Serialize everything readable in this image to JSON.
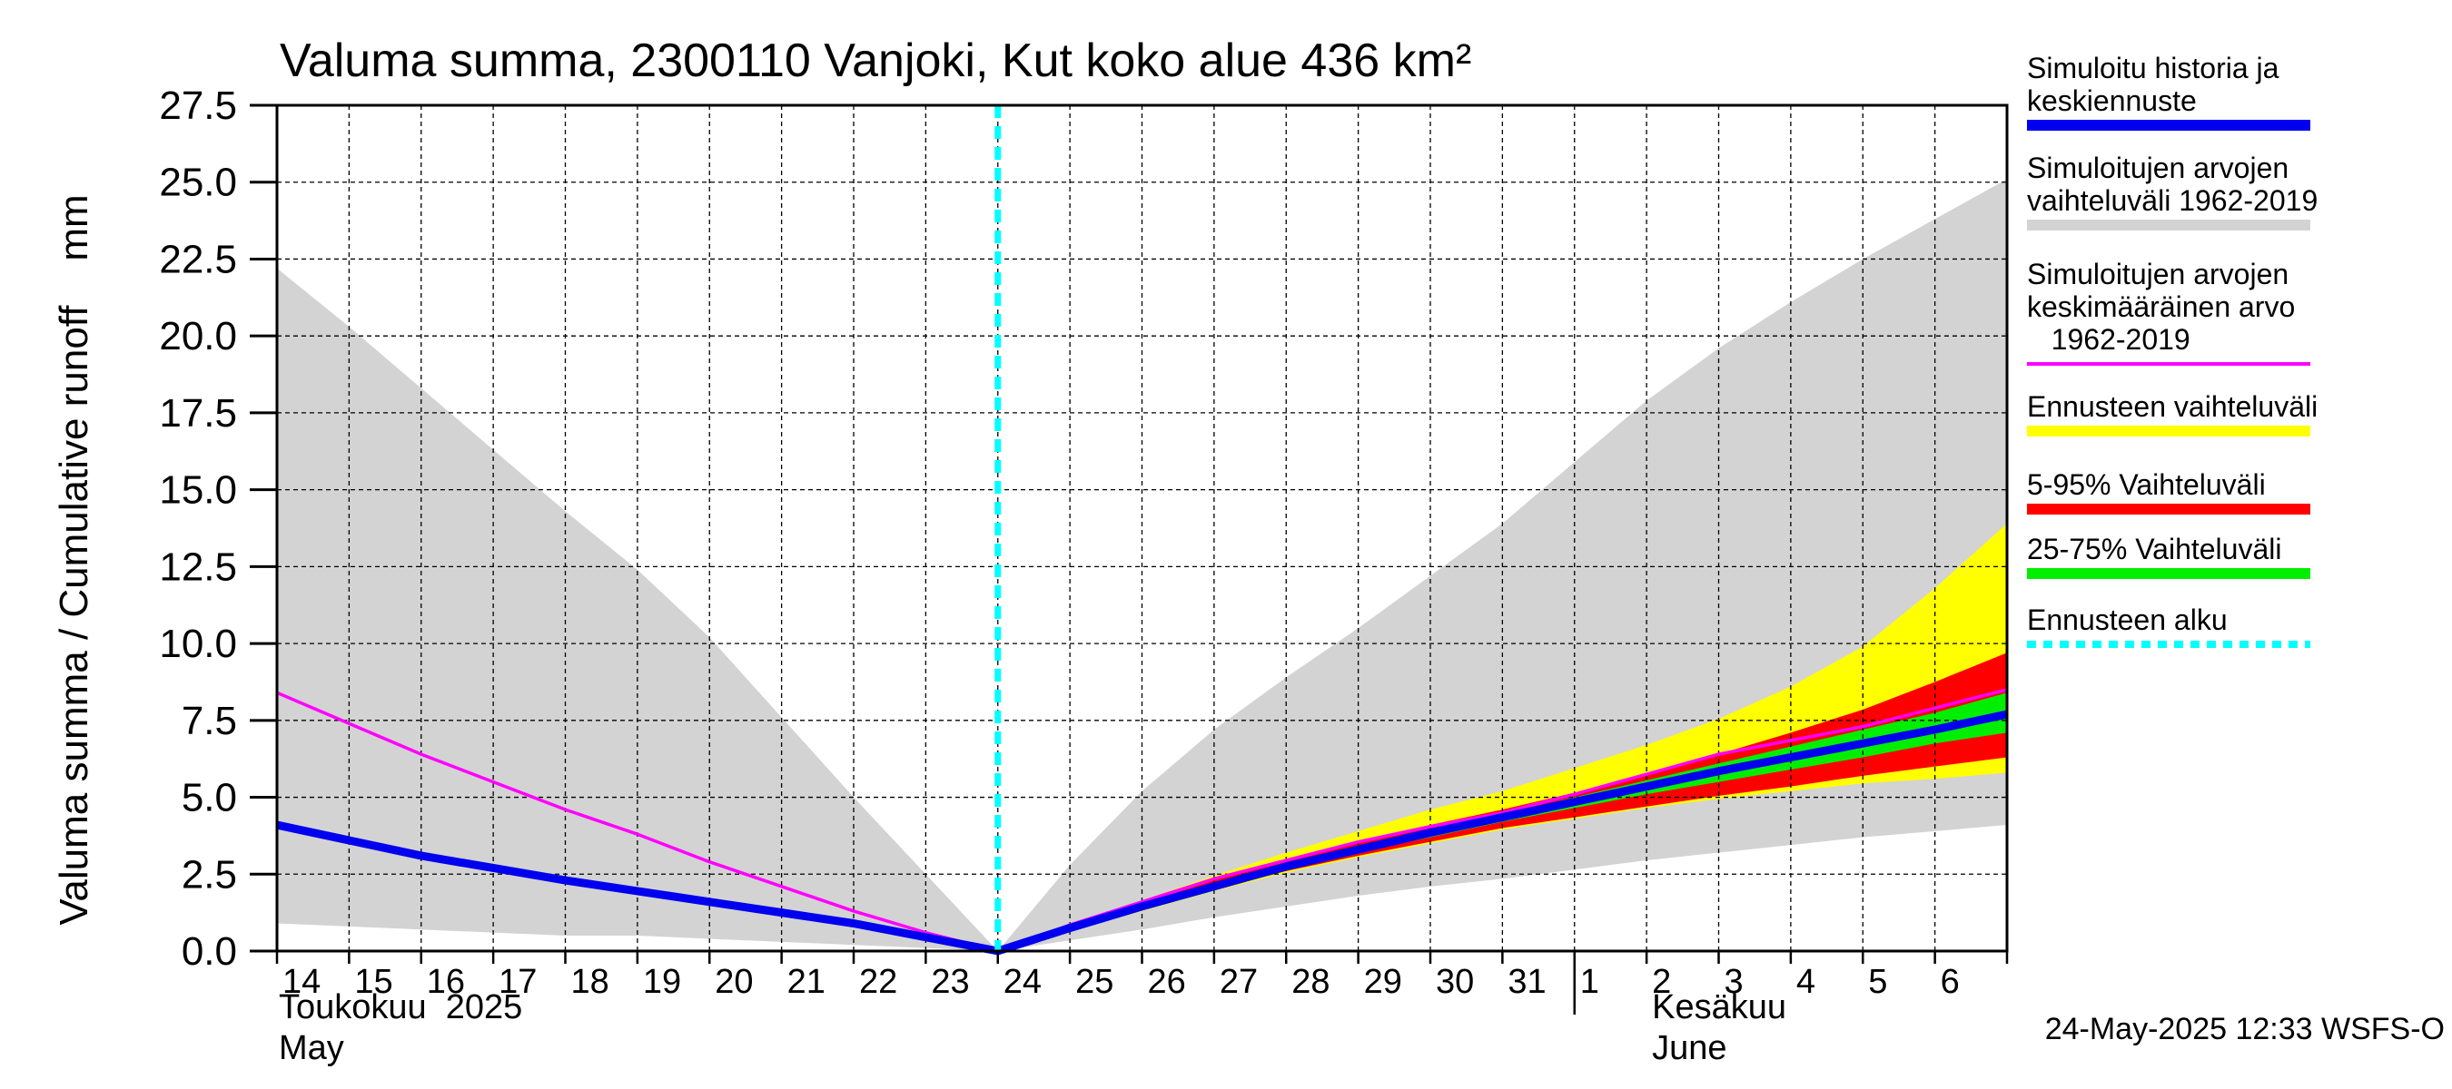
{
  "chart_data": {
    "type": "area",
    "title": "Valuma summa, 2300110 Vanjoki, Kut koko alue 436 km²",
    "ylabel": "Valuma summa / Cumulative runoff    mm",
    "ylim": [
      0,
      27.5
    ],
    "y_ticks": [
      "0.0",
      "2.5",
      "5.0",
      "7.5",
      "10.0",
      "12.5",
      "15.0",
      "17.5",
      "20.0",
      "22.5",
      "25.0",
      "27.5"
    ],
    "x_range": [
      0,
      24
    ],
    "day_labels": [
      "14",
      "15",
      "16",
      "17",
      "18",
      "19",
      "20",
      "21",
      "22",
      "23",
      "24",
      "25",
      "26",
      "27",
      "28",
      "29",
      "30",
      "31",
      "1",
      "2",
      "3",
      "4",
      "5",
      "6"
    ],
    "month_labels": {
      "may_fi": "Toukokuu  2025",
      "may_en": "May",
      "june_fi": "Kesäkuu",
      "june_en": "June"
    },
    "forecast_start": 10,
    "x": [
      0,
      1,
      2,
      3,
      4,
      5,
      6,
      7,
      8,
      9,
      10,
      11,
      12,
      13,
      14,
      15,
      16,
      17,
      18,
      19,
      20,
      21,
      22,
      23,
      24
    ],
    "series": [
      {
        "name": "Simuloitujen arvojen vaihteluväli 1962-2019 (upper)",
        "values": [
          22.2,
          20.3,
          18.3,
          16.3,
          14.3,
          12.4,
          10.2,
          7.6,
          5.0,
          2.5,
          0,
          2.8,
          5.2,
          7.2,
          8.9,
          10.5,
          12.2,
          13.9,
          15.9,
          17.9,
          19.6,
          21.1,
          22.5,
          23.8,
          25.1
        ]
      },
      {
        "name": "Simuloitujen arvojen vaihteluväli 1962-2019 (lower)",
        "values": [
          0.9,
          0.8,
          0.7,
          0.6,
          0.5,
          0.5,
          0.4,
          0.3,
          0.2,
          0.1,
          0,
          0.35,
          0.7,
          1.1,
          1.45,
          1.8,
          2.1,
          2.35,
          2.65,
          2.95,
          3.2,
          3.45,
          3.7,
          3.9,
          4.1
        ]
      },
      {
        "name": "Simuloitujen arvojen keskimääräinen arvo 1962-2019",
        "values": [
          8.4,
          7.4,
          6.4,
          5.5,
          4.6,
          3.8,
          2.9,
          2.1,
          1.3,
          0.6,
          0,
          0.85,
          1.6,
          2.35,
          2.95,
          3.55,
          4.05,
          4.5,
          5.1,
          5.75,
          6.4,
          6.85,
          7.3,
          7.9,
          8.5
        ]
      },
      {
        "name": "Simuloitu historia ja keskiennuste",
        "values": [
          4.1,
          3.6,
          3.1,
          2.7,
          2.3,
          1.95,
          1.6,
          1.25,
          0.9,
          0.45,
          0,
          0.75,
          1.45,
          2.1,
          2.75,
          3.3,
          3.85,
          4.35,
          4.85,
          5.35,
          5.85,
          6.3,
          6.75,
          7.2,
          7.7
        ]
      },
      {
        "name": "Ennusteen vaihteluväli (upper)",
        "values": [
          null,
          null,
          null,
          null,
          null,
          null,
          null,
          null,
          null,
          null,
          0,
          0.85,
          1.65,
          2.45,
          3.2,
          3.9,
          4.6,
          5.2,
          5.95,
          6.7,
          7.55,
          8.6,
          9.9,
          11.8,
          13.9
        ]
      },
      {
        "name": "Ennusteen vaihteluväli (lower)",
        "values": [
          null,
          null,
          null,
          null,
          null,
          null,
          null,
          null,
          null,
          null,
          0,
          0.65,
          1.3,
          1.95,
          2.55,
          3.05,
          3.5,
          3.95,
          4.3,
          4.65,
          4.95,
          5.2,
          5.45,
          5.6,
          5.8
        ]
      },
      {
        "name": "5-95% Vaihteluväli (upper)",
        "values": [
          null,
          null,
          null,
          null,
          null,
          null,
          null,
          null,
          null,
          null,
          0,
          0.8,
          1.55,
          2.3,
          2.95,
          3.55,
          4.1,
          4.6,
          5.15,
          5.75,
          6.4,
          7.1,
          7.85,
          8.75,
          9.7
        ]
      },
      {
        "name": "5-95% Vaihteluväli (lower)",
        "values": [
          null,
          null,
          null,
          null,
          null,
          null,
          null,
          null,
          null,
          null,
          0,
          0.7,
          1.35,
          2.0,
          2.6,
          3.1,
          3.55,
          4.0,
          4.35,
          4.7,
          5.05,
          5.35,
          5.7,
          6.0,
          6.3
        ]
      },
      {
        "name": "25-75% Vaihteluväli (upper)",
        "values": [
          null,
          null,
          null,
          null,
          null,
          null,
          null,
          null,
          null,
          null,
          0,
          0.78,
          1.5,
          2.2,
          2.85,
          3.4,
          3.95,
          4.45,
          5.0,
          5.55,
          6.1,
          6.65,
          7.2,
          7.75,
          8.4
        ]
      },
      {
        "name": "25-75% Vaihteluväli (lower)",
        "values": [
          null,
          null,
          null,
          null,
          null,
          null,
          null,
          null,
          null,
          null,
          0,
          0.72,
          1.4,
          2.05,
          2.65,
          3.2,
          3.7,
          4.2,
          4.65,
          5.1,
          5.5,
          5.9,
          6.3,
          6.75,
          7.1
        ]
      }
    ],
    "colors": {
      "history_range": "#d3d3d3",
      "forecast_range": "#ffff00",
      "p5_95": "#ff0000",
      "p25_75": "#00ee00",
      "mean": "#ff00ff",
      "median": "#0000ee",
      "forecast_start": "#00ffff",
      "grid": "#000000"
    },
    "legend": [
      {
        "label_lines": [
          "Simuloitu historia ja",
          "keskiennuste"
        ],
        "color": "#0000ee",
        "style": "solid"
      },
      {
        "label_lines": [
          "Simuloitujen arvojen",
          "vaihteluväli 1962-2019"
        ],
        "color": "#d3d3d3",
        "style": "solid"
      },
      {
        "label_lines": [
          "Simuloitujen arvojen",
          "keskimääräinen arvo",
          "   1962-2019"
        ],
        "color": "#ff00ff",
        "style": "thin"
      },
      {
        "label_lines": [
          "Ennusteen vaihteluväli"
        ],
        "color": "#ffff00",
        "style": "solid"
      },
      {
        "label_lines": [
          "5-95% Vaihteluväli"
        ],
        "color": "#ff0000",
        "style": "solid"
      },
      {
        "label_lines": [
          "25-75% Vaihteluväli"
        ],
        "color": "#00ee00",
        "style": "solid"
      },
      {
        "label_lines": [
          "Ennusteen alku"
        ],
        "color": "#00ffff",
        "style": "dashed"
      }
    ],
    "timestamp": "24-May-2025 12:33 WSFS-O"
  }
}
